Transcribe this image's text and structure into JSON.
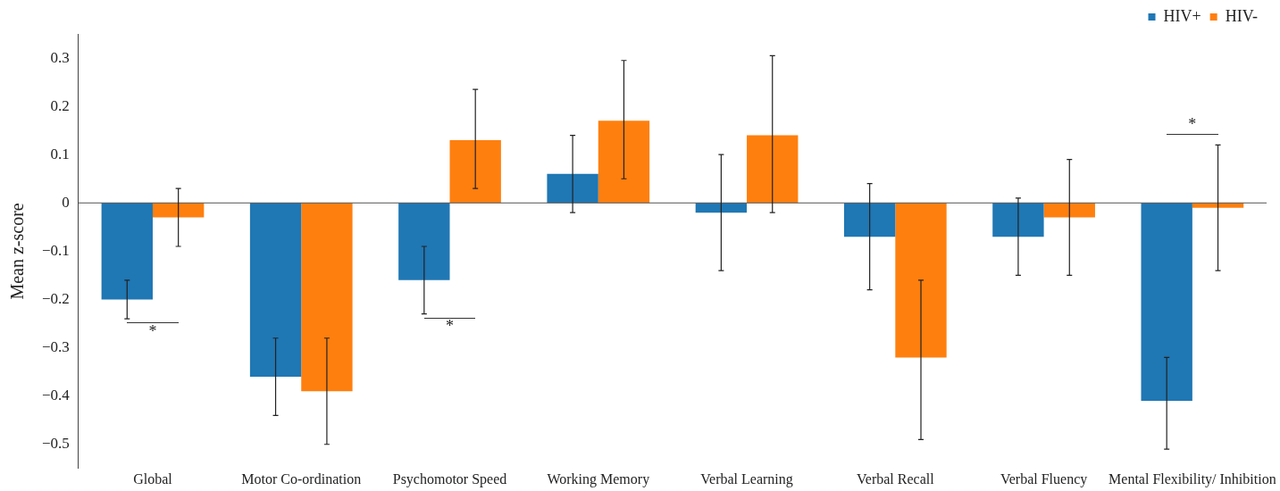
{
  "chart_data": {
    "type": "bar",
    "ylabel": "Mean z-score",
    "categories": [
      "Global",
      "Motor Co-ordination",
      "Psychomotor Speed",
      "Working Memory",
      "Verbal Learning",
      "Verbal Recall",
      "Verbal Fluency",
      "Mental Flexibility/ Inhibition"
    ],
    "series": [
      {
        "name": "HIV+",
        "color": "#1f77b4",
        "values": [
          -0.2,
          -0.36,
          -0.16,
          0.06,
          -0.02,
          -0.07,
          -0.07,
          -0.41
        ],
        "errors": [
          [
            -0.24,
            -0.16
          ],
          [
            -0.44,
            -0.28
          ],
          [
            -0.23,
            -0.09
          ],
          [
            -0.02,
            0.14
          ],
          [
            -0.14,
            0.1
          ],
          [
            -0.18,
            0.04
          ],
          [
            -0.15,
            0.01
          ],
          [
            -0.51,
            -0.32
          ]
        ]
      },
      {
        "name": "HIV-",
        "color": "#ff7f0e",
        "values": [
          -0.03,
          -0.39,
          0.13,
          0.17,
          0.14,
          -0.32,
          -0.03,
          -0.01
        ],
        "errors": [
          [
            -0.09,
            0.03
          ],
          [
            -0.5,
            -0.28
          ],
          [
            0.03,
            0.235
          ],
          [
            0.05,
            0.295
          ],
          [
            -0.02,
            0.305
          ],
          [
            -0.49,
            -0.16
          ],
          [
            -0.15,
            0.09
          ],
          [
            -0.14,
            0.12
          ]
        ]
      }
    ],
    "ylim": [
      -0.55,
      0.35
    ],
    "yticks": [
      -0.5,
      -0.4,
      -0.3,
      -0.2,
      -0.1,
      0,
      0.1,
      0.2,
      0.3
    ],
    "ref_lines": [
      {
        "axis": "y",
        "value": 0
      }
    ],
    "annotations": [
      "*",
      "*",
      "*"
    ],
    "legend": "top right",
    "marker": "square",
    "grid": false
  }
}
